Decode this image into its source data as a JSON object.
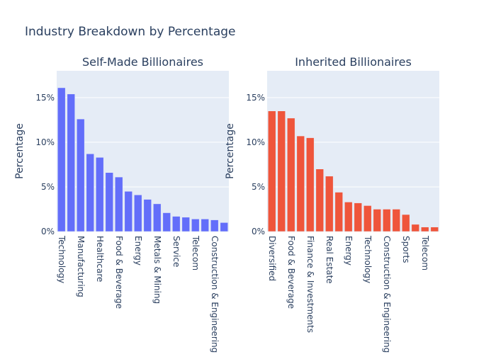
{
  "chart_data": [
    {
      "type": "bar",
      "title": "Industry Breakdown by Percentage",
      "subtitle": "Self-Made Billionaires",
      "xlabel": "",
      "ylabel": "Percentage",
      "ylim": [
        0,
        18
      ],
      "yticks": [
        0,
        5,
        10,
        15
      ],
      "ytick_labels": [
        "0%",
        "5%",
        "10%",
        "15%"
      ],
      "grid": true,
      "color": "#636efa",
      "categories": [
        "Technology",
        "",
        "Manufacturing",
        "",
        "Healthcare",
        "",
        "Food & Beverage",
        "",
        "Energy",
        "",
        "Metals & Mining",
        "",
        "Service",
        "",
        "Telecom",
        "",
        "Construction & Engineering",
        ""
      ],
      "values": [
        16.1,
        15.4,
        12.6,
        8.7,
        8.3,
        6.6,
        6.1,
        4.5,
        4.1,
        3.6,
        3.1,
        2.1,
        1.7,
        1.6,
        1.4,
        1.4,
        1.3,
        1.0
      ]
    },
    {
      "type": "bar",
      "subtitle": "Inherited Billionaires",
      "xlabel": "",
      "ylabel": "Percentage",
      "ylim": [
        0,
        18
      ],
      "yticks": [
        0,
        5,
        10,
        15
      ],
      "ytick_labels": [
        "0%",
        "5%",
        "10%",
        "15%"
      ],
      "grid": true,
      "color": "#ef553b",
      "categories": [
        "Diversified",
        "",
        "Food & Beverage",
        "",
        "Finance & Investments",
        "",
        "Real Estate",
        "",
        "Energy",
        "",
        "Technology",
        "",
        "Construction & Engineering",
        "",
        "Sports",
        "",
        "Telecom",
        ""
      ],
      "values": [
        13.5,
        13.5,
        12.7,
        10.7,
        10.5,
        7.0,
        6.2,
        4.4,
        3.3,
        3.2,
        2.9,
        2.5,
        2.5,
        2.5,
        1.9,
        0.8,
        0.5,
        0.5
      ]
    }
  ]
}
